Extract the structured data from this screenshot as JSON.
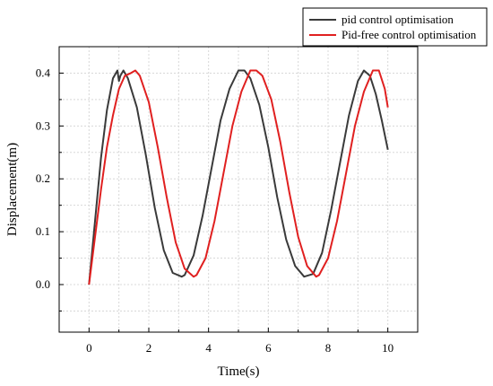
{
  "chart_data": {
    "type": "line",
    "title": "",
    "xlabel": "Time(s)",
    "ylabel": "Displacement(m)",
    "xlim": [
      -1,
      11
    ],
    "ylim": [
      -0.09,
      0.45
    ],
    "grid": true,
    "legend_position": "top-right outside",
    "x_ticks": [
      0,
      2,
      4,
      6,
      8,
      10
    ],
    "y_ticks": [
      0.0,
      0.1,
      0.2,
      0.3,
      0.4
    ],
    "x_tick_labels": [
      "0",
      "2",
      "4",
      "6",
      "8",
      "10"
    ],
    "y_tick_labels": [
      "0.0",
      "0.1",
      "0.2",
      "0.3",
      "0.4"
    ],
    "series": [
      {
        "name": "pid control optimisation",
        "color": "#3a3a3a",
        "x": [
          0,
          0.2,
          0.4,
          0.6,
          0.8,
          0.95,
          1.0,
          1.05,
          1.15,
          1.3,
          1.6,
          1.9,
          2.2,
          2.5,
          2.8,
          3.1,
          3.2,
          3.5,
          3.8,
          4.1,
          4.4,
          4.7,
          5.0,
          5.2,
          5.4,
          5.7,
          6.0,
          6.3,
          6.6,
          6.9,
          7.2,
          7.5,
          7.8,
          8.1,
          8.4,
          8.7,
          9.0,
          9.2,
          9.4,
          9.6,
          9.8,
          10.0
        ],
        "y": [
          0.0,
          0.12,
          0.24,
          0.33,
          0.39,
          0.405,
          0.385,
          0.395,
          0.405,
          0.39,
          0.335,
          0.245,
          0.145,
          0.065,
          0.022,
          0.015,
          0.018,
          0.055,
          0.13,
          0.22,
          0.31,
          0.37,
          0.405,
          0.405,
          0.39,
          0.34,
          0.26,
          0.165,
          0.085,
          0.035,
          0.015,
          0.02,
          0.06,
          0.14,
          0.23,
          0.32,
          0.385,
          0.405,
          0.395,
          0.36,
          0.31,
          0.255
        ]
      },
      {
        "name": "Pid-free control optimisation",
        "color": "#e02020",
        "x": [
          0,
          0.2,
          0.4,
          0.6,
          0.8,
          1.0,
          1.2,
          1.4,
          1.55,
          1.7,
          2.0,
          2.3,
          2.6,
          2.9,
          3.2,
          3.5,
          3.6,
          3.9,
          4.2,
          4.5,
          4.8,
          5.1,
          5.4,
          5.6,
          5.8,
          6.1,
          6.4,
          6.7,
          7.0,
          7.3,
          7.6,
          7.7,
          8.0,
          8.3,
          8.6,
          8.9,
          9.2,
          9.5,
          9.7,
          9.9,
          10.0
        ],
        "y": [
          0.0,
          0.09,
          0.18,
          0.26,
          0.32,
          0.37,
          0.395,
          0.4,
          0.405,
          0.395,
          0.345,
          0.26,
          0.165,
          0.08,
          0.03,
          0.015,
          0.018,
          0.05,
          0.12,
          0.21,
          0.3,
          0.365,
          0.405,
          0.405,
          0.395,
          0.35,
          0.27,
          0.175,
          0.09,
          0.035,
          0.015,
          0.018,
          0.05,
          0.12,
          0.21,
          0.3,
          0.365,
          0.405,
          0.405,
          0.37,
          0.335
        ]
      }
    ]
  }
}
